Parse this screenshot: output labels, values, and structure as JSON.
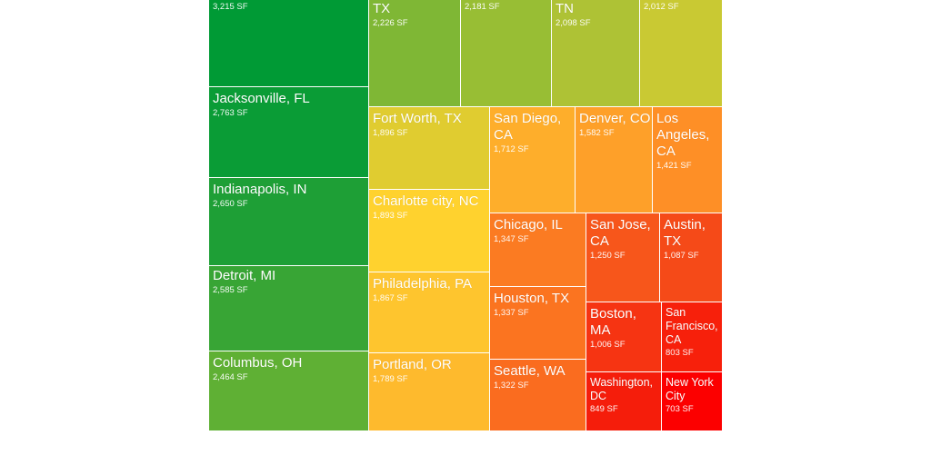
{
  "chart_data": {
    "type": "treemap",
    "unit": "SF",
    "items": [
      {
        "name": "",
        "label": "",
        "value": 3215,
        "color": "#009a35"
      },
      {
        "name": "Jacksonville, FL",
        "label": "Jacksonville, FL",
        "value": 2763,
        "color": "#0a9c36"
      },
      {
        "name": "Indianapolis, IN",
        "label": "Indianapolis, IN",
        "value": 2650,
        "color": "#1e9f36"
      },
      {
        "name": "Detroit, MI",
        "label": "Detroit, MI",
        "value": 2585,
        "color": "#38a535"
      },
      {
        "name": "Columbus, OH",
        "label": "Columbus, OH",
        "value": 2464,
        "color": "#5fb034"
      },
      {
        "name": "TX",
        "label": "TX",
        "value": 2226,
        "color": "#7fb735"
      },
      {
        "name": "",
        "label": "",
        "value": 2181,
        "color": "#98be34"
      },
      {
        "name": "TN",
        "label": "TN",
        "value": 2098,
        "color": "#aec235"
      },
      {
        "name": "",
        "label": "",
        "value": 2012,
        "color": "#c9c933"
      },
      {
        "name": "Fort Worth, TX",
        "label": "Fort Worth, TX",
        "value": 1896,
        "color": "#e0cc30"
      },
      {
        "name": "Charlotte city, NC",
        "label": "Charlotte city, NC",
        "value": 1893,
        "color": "#ffd22e"
      },
      {
        "name": "Philadelphia, PA",
        "label": "Philadelphia, PA",
        "value": 1867,
        "color": "#fec52e"
      },
      {
        "name": "Portland, OR",
        "label": "Portland, OR",
        "value": 1789,
        "color": "#feba2d"
      },
      {
        "name": "San Diego, CA",
        "label": "San Diego,\nCA",
        "value": 1712,
        "color": "#feae2b"
      },
      {
        "name": "Denver, CO",
        "label": "Denver, CO",
        "value": 1582,
        "color": "#fea029"
      },
      {
        "name": "Los Angeles, CA",
        "label": "Los\nAngeles,\nCA",
        "value": 1421,
        "color": "#fe8f26"
      },
      {
        "name": "Chicago, IL",
        "label": "Chicago, IL",
        "value": 1347,
        "color": "#fb7b22"
      },
      {
        "name": "Houston, TX",
        "label": "Houston, TX",
        "value": 1337,
        "color": "#fb7420"
      },
      {
        "name": "Seattle, WA",
        "label": "Seattle, WA",
        "value": 1322,
        "color": "#fa6c1f"
      },
      {
        "name": "San Jose, CA",
        "label": "San Jose,\nCA",
        "value": 1250,
        "color": "#f7561b"
      },
      {
        "name": "Austin, TX",
        "label": "Austin,\nTX",
        "value": 1087,
        "color": "#f54a18"
      },
      {
        "name": "Boston, MA",
        "label": "Boston,\nMA",
        "value": 1006,
        "color": "#f63412"
      },
      {
        "name": "San Francisco, CA",
        "label": "San\nFrancisco,\nCA",
        "value": 803,
        "color": "#f7200b"
      },
      {
        "name": "Washington, DC",
        "label": "Washington,\nDC",
        "value": 849,
        "color": "#f51d0b"
      },
      {
        "name": "New York City",
        "label": "New York\nCity",
        "value": 703,
        "color": "#fc0000"
      }
    ]
  }
}
